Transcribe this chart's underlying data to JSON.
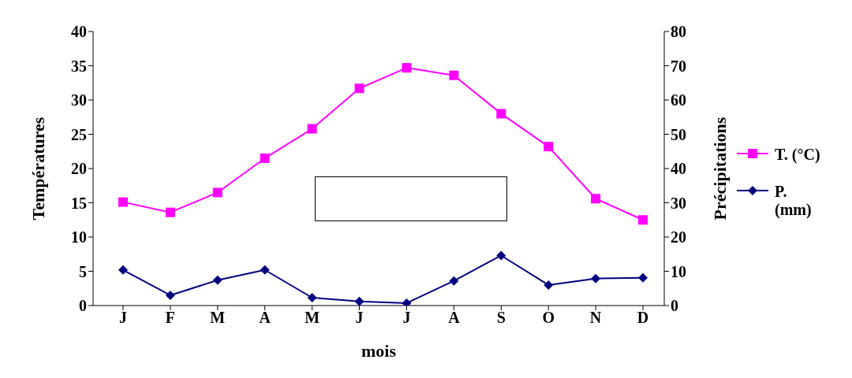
{
  "chart_data": {
    "type": "line",
    "xlabel": "mois",
    "ylabel": "Températures",
    "y2label": "Précipitations",
    "categories": [
      "J",
      "F",
      "M",
      "A",
      "M",
      "J",
      "J",
      "A",
      "S",
      "O",
      "N",
      "D"
    ],
    "series": [
      {
        "name": "T. (°C)",
        "color": "#ff00ff",
        "marker": "square",
        "values": [
          15.1,
          13.6,
          16.5,
          21.5,
          25.8,
          31.7,
          34.7,
          33.6,
          28.0,
          23.2,
          15.6,
          12.5
        ]
      },
      {
        "name": "P. (mm)",
        "color": "#000080",
        "marker": "diamond",
        "axis": "y2",
        "values": [
          10.4,
          3.0,
          7.4,
          10.4,
          2.3,
          1.2,
          0.7,
          7.2,
          14.6,
          6.0,
          7.9,
          8.1
        ]
      }
    ],
    "ylim": [
      0,
      40
    ],
    "yticks": [
      0,
      5,
      10,
      15,
      20,
      25,
      30,
      35,
      40
    ],
    "y2lim": [
      0,
      80
    ],
    "y2ticks": [
      0,
      10,
      20,
      30,
      40,
      50,
      60,
      70,
      80
    ],
    "legend": "right",
    "grid": false
  }
}
